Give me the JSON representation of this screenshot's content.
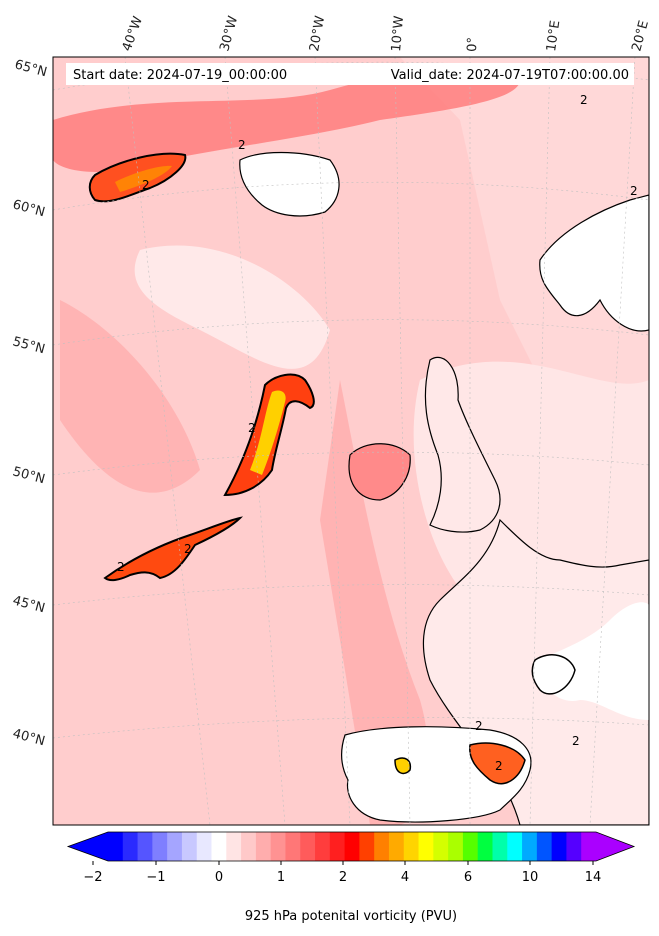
{
  "header": {
    "start_date": "Start date: 2024-07-19_00:00:00",
    "valid_date": "Valid_date: 2024-07-19T07:00:00.00"
  },
  "lon_labels": [
    "40°W",
    "30°W",
    "20°W",
    "10°W",
    "0°",
    "10°E",
    "20°E"
  ],
  "lat_labels": [
    "65°N",
    "60°N",
    "55°N",
    "50°N",
    "45°N",
    "40°N"
  ],
  "contour_label": "2",
  "colorbar": {
    "title": "925 hPa potenital vorticity (PVU)",
    "ticks": [
      "−2",
      "−1",
      "0",
      "1",
      "2",
      "4",
      "6",
      "10",
      "14"
    ],
    "colors": [
      "#0000ff",
      "#2a2aff",
      "#5555ff",
      "#7f7fff",
      "#a5a5ff",
      "#c8c8ff",
      "#e8e8ff",
      "#ffffff",
      "#ffe4e4",
      "#ffc9c9",
      "#ffadad",
      "#ff9292",
      "#ff7777",
      "#ff5b5b",
      "#ff3d3d",
      "#ff1f1f",
      "#ff0000",
      "#ff4000",
      "#ff8000",
      "#ffaa00",
      "#ffd400",
      "#ffff00",
      "#d4ff00",
      "#aaff00",
      "#55ff00",
      "#00ff40",
      "#00ffaa",
      "#00ffff",
      "#00aaff",
      "#0055ff",
      "#0000ff",
      "#5500ff",
      "#aa00ff"
    ]
  },
  "palette": {
    "ocean_base": "#ffe0e0",
    "coast": "#000000",
    "high_pv": "#ff3030",
    "max_pv": "#ffc000"
  }
}
